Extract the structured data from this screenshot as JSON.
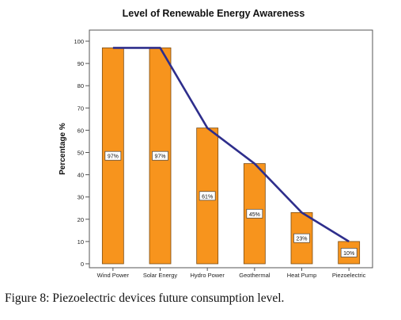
{
  "chart_data": {
    "type": "bar",
    "title": "Level of Renewable Energy Awareness",
    "xlabel": "",
    "ylabel": "Percentage %",
    "categories": [
      "Wind Power",
      "Solar Energy",
      "Hydro Power",
      "Geothermal",
      "Heat Pump",
      "Piezoelectric"
    ],
    "values": [
      97,
      97,
      61,
      45,
      23,
      10
    ],
    "data_labels": [
      "97%",
      "97%",
      "61%",
      "45%",
      "23%",
      "10%"
    ],
    "ylim": [
      0,
      100
    ],
    "yticks": [
      0,
      10,
      20,
      30,
      40,
      50,
      60,
      70,
      80,
      90,
      100
    ],
    "overlay_line": true,
    "grid": false,
    "colors": {
      "bar": "#f7941d",
      "bar_stroke": "#7a4a10",
      "line": "#2e2e8c",
      "plot_bg": "#ffffff"
    }
  },
  "caption": {
    "label": "Figure 8:",
    "text": " Piezoelectric devices future consumption level."
  }
}
